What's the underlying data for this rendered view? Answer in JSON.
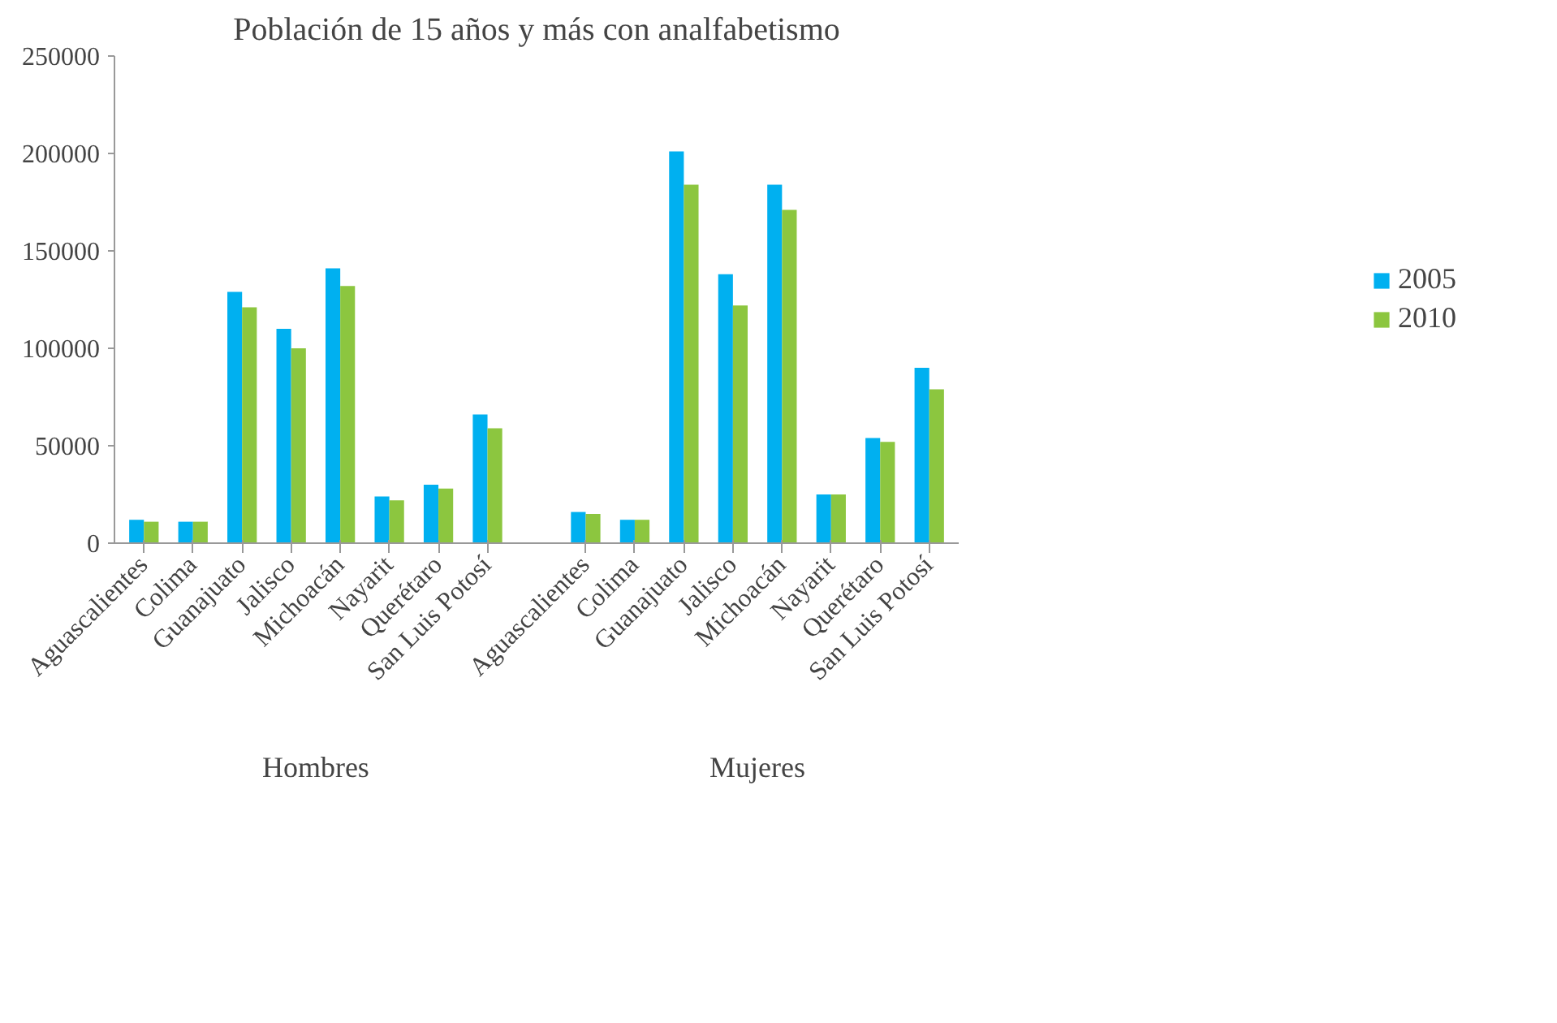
{
  "chart_data": {
    "type": "bar",
    "title": "Población de 15 años y más con analfabetismo",
    "categories": [
      "Aguascalientes",
      "Colima",
      "Guanajuato",
      "Jalisco",
      "Michoacán",
      "Nayarit",
      "Querétaro",
      "San Luis Potosí",
      null,
      "Aguascalientes",
      "Colima",
      "Guanajuato",
      "Jalisco",
      "Michoacán",
      "Nayarit",
      "Querétaro",
      "San Luis Potosí"
    ],
    "series": [
      {
        "name": "2005",
        "color": "#00b0f0",
        "values": [
          12000,
          11000,
          129000,
          110000,
          141000,
          24000,
          30000,
          66000,
          null,
          16000,
          12000,
          201000,
          138000,
          184000,
          25000,
          54000,
          90000
        ]
      },
      {
        "name": "2010",
        "color": "#8cc63f",
        "values": [
          11000,
          11000,
          121000,
          100000,
          132000,
          22000,
          28000,
          59000,
          null,
          15000,
          12000,
          184000,
          122000,
          171000,
          25000,
          52000,
          79000
        ]
      }
    ],
    "annotations": [
      "Hombres",
      "Mujeres"
    ],
    "ylim": [
      0,
      250000
    ],
    "yticks": [
      0,
      50000,
      100000,
      150000,
      200000,
      250000
    ],
    "grid": false,
    "legend": "right"
  }
}
